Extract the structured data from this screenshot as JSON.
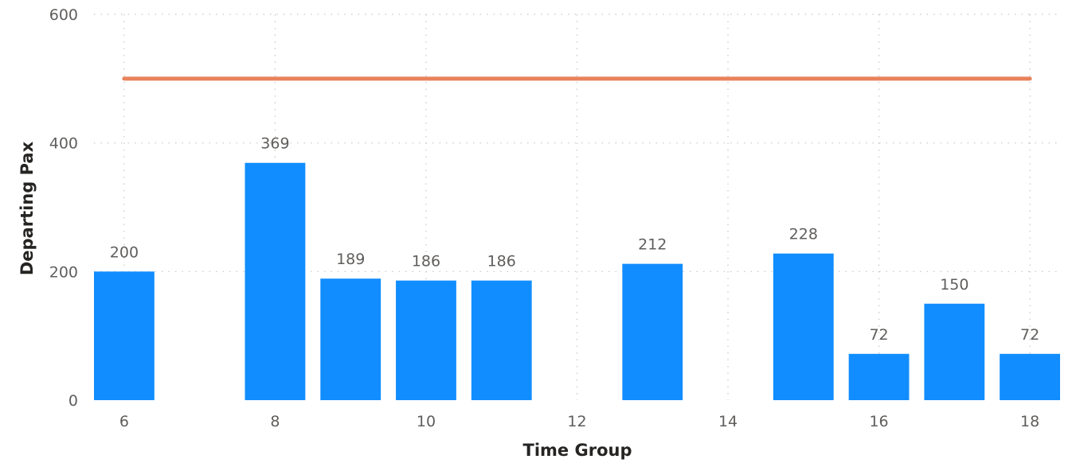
{
  "chart_data": {
    "type": "bar",
    "x_axis_title": "Time Group",
    "y_axis_title": "Departing Pax",
    "xlim": [
      5.6,
      18.4
    ],
    "ylim": [
      0,
      600
    ],
    "x_ticks": [
      6,
      8,
      10,
      12,
      14,
      16,
      18
    ],
    "y_ticks": [
      0,
      200,
      400,
      600
    ],
    "x": [
      6,
      8,
      9,
      10,
      11,
      13,
      15,
      16,
      17,
      18
    ],
    "values": [
      200,
      369,
      189,
      186,
      186,
      212,
      228,
      72,
      150,
      72
    ],
    "bar_color": "#118dff",
    "reference_line": {
      "value": 500,
      "color": "#e8825b"
    },
    "grid": true,
    "data_labels": true
  }
}
